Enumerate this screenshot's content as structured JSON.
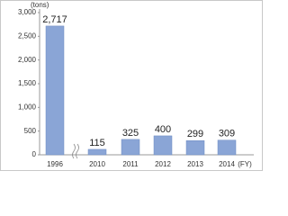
{
  "chart_data": {
    "type": "bar",
    "unit_label": "(tons)",
    "x_unit_label": "(FY)",
    "categories": [
      "1996",
      "2010",
      "2011",
      "2012",
      "2013",
      "2014"
    ],
    "values": [
      2717,
      115,
      325,
      400,
      299,
      309
    ],
    "value_labels": [
      "2,717",
      "115",
      "325",
      "400",
      "299",
      "309"
    ],
    "color": "#8aa5d6",
    "ylim": [
      0,
      3000
    ],
    "yticks": [
      0,
      500,
      {
        "value": 1000,
        "label": "1,000"
      },
      {
        "value": 1500,
        "label": "1,500"
      },
      {
        "value": 2000,
        "label": "2,000"
      },
      {
        "value": 2500,
        "label": "2,500"
      },
      {
        "value": 3000,
        "label": "3,000"
      }
    ]
  }
}
